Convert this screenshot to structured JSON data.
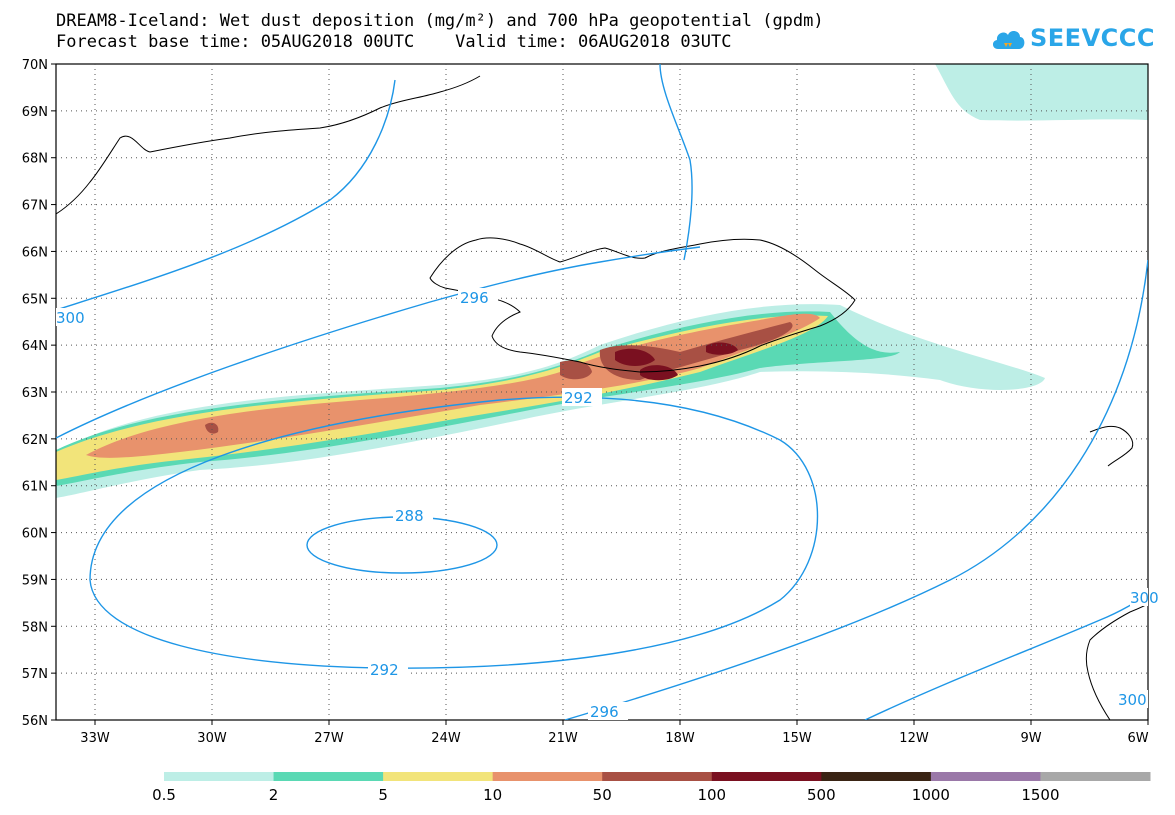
{
  "title": {
    "line1": "DREAM8-Iceland: Wet dust deposition (mg/m²) and 700 hPa geopotential (gpdm)",
    "line2": "Forecast base time: 05AUG2018 00UTC    Valid time: 06AUG2018 03UTC"
  },
  "logo": {
    "text": "SEEVCCC",
    "icon": "cloud-icon"
  },
  "axes": {
    "lat_labels": [
      "70N",
      "69N",
      "68N",
      "67N",
      "66N",
      "65N",
      "64N",
      "63N",
      "62N",
      "61N",
      "60N",
      "59N",
      "58N",
      "57N",
      "56N"
    ],
    "lon_labels": [
      "33W",
      "30W",
      "27W",
      "24W",
      "21W",
      "18W",
      "15W",
      "12W",
      "9W",
      "6W"
    ],
    "lat_range": [
      56,
      70
    ],
    "lon_range": [
      -34,
      -6
    ],
    "grid": "dotted"
  },
  "contours": {
    "labels": [
      "288",
      "292",
      "292",
      "296",
      "296",
      "300",
      "300",
      "300"
    ]
  },
  "legend": {
    "colors": [
      "#bdeee6",
      "#5ad9b4",
      "#f2e47a",
      "#e8926c",
      "#a85044",
      "#7a1020",
      "#3a2414",
      "#9a78a8",
      "#a8a8a8"
    ],
    "labels": [
      "0.5",
      "2",
      "5",
      "10",
      "50",
      "100",
      "500",
      "1000",
      "1500"
    ]
  },
  "colors": {
    "contour": "#1e96e6",
    "coast": "#000000"
  }
}
